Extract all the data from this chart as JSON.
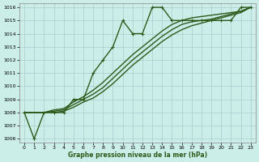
{
  "bg_color": "#cceee8",
  "grid_color": "#aacccc",
  "line_color": "#2d5a1b",
  "xlabel": "Graphe pression niveau de la mer (hPa)",
  "ylim": [
    1006,
    1016
  ],
  "xlim": [
    0,
    23
  ],
  "yticks": [
    1006,
    1007,
    1008,
    1009,
    1010,
    1011,
    1012,
    1013,
    1014,
    1015,
    1016
  ],
  "xticks": [
    0,
    1,
    2,
    3,
    4,
    5,
    6,
    7,
    8,
    9,
    10,
    11,
    12,
    13,
    14,
    15,
    16,
    17,
    18,
    19,
    20,
    21,
    22,
    23
  ],
  "series": [
    {
      "x": [
        0,
        1,
        2,
        3,
        4,
        5,
        6,
        7,
        8,
        9,
        10,
        11,
        12,
        13,
        14,
        15,
        16,
        17,
        18,
        19,
        20,
        21,
        22,
        23
      ],
      "y": [
        1008,
        1006,
        1008,
        1008,
        1008,
        1009,
        1009,
        1011,
        1012,
        1013,
        1015,
        1014,
        1014,
        1016,
        1016,
        1015,
        1015,
        1015,
        1015,
        1015,
        1015,
        1015,
        1016,
        1016
      ],
      "marker": true,
      "lw": 1.0
    },
    {
      "x": [
        0,
        1,
        2,
        3,
        4,
        5,
        6,
        7,
        8,
        9,
        10,
        11,
        12,
        13,
        14,
        15,
        16,
        17,
        18,
        19,
        20,
        21,
        22,
        23
      ],
      "y": [
        1008,
        1008,
        1008,
        1008.2,
        1008.3,
        1008.8,
        1009.2,
        1009.7,
        1010.3,
        1011.0,
        1011.7,
        1012.4,
        1013.0,
        1013.6,
        1014.2,
        1014.7,
        1015.0,
        1015.2,
        1015.3,
        1015.4,
        1015.5,
        1015.6,
        1015.7,
        1016.0
      ],
      "marker": false,
      "lw": 1.0
    },
    {
      "x": [
        0,
        1,
        2,
        3,
        4,
        5,
        6,
        7,
        8,
        9,
        10,
        11,
        12,
        13,
        14,
        15,
        16,
        17,
        18,
        19,
        20,
        21,
        22,
        23
      ],
      "y": [
        1008,
        1008,
        1008,
        1008.1,
        1008.2,
        1008.6,
        1009.0,
        1009.4,
        1009.9,
        1010.6,
        1011.3,
        1012.0,
        1012.6,
        1013.2,
        1013.8,
        1014.3,
        1014.7,
        1014.9,
        1015.0,
        1015.1,
        1015.3,
        1015.5,
        1015.7,
        1016.0
      ],
      "marker": false,
      "lw": 1.0
    },
    {
      "x": [
        0,
        1,
        2,
        3,
        4,
        5,
        6,
        7,
        8,
        9,
        10,
        11,
        12,
        13,
        14,
        15,
        16,
        17,
        18,
        19,
        20,
        21,
        22,
        23
      ],
      "y": [
        1008,
        1008,
        1008,
        1008.0,
        1008.1,
        1008.4,
        1008.8,
        1009.1,
        1009.6,
        1010.2,
        1010.9,
        1011.6,
        1012.2,
        1012.8,
        1013.4,
        1013.9,
        1014.3,
        1014.6,
        1014.8,
        1015.0,
        1015.2,
        1015.4,
        1015.6,
        1016.0
      ],
      "marker": false,
      "lw": 1.0
    }
  ]
}
